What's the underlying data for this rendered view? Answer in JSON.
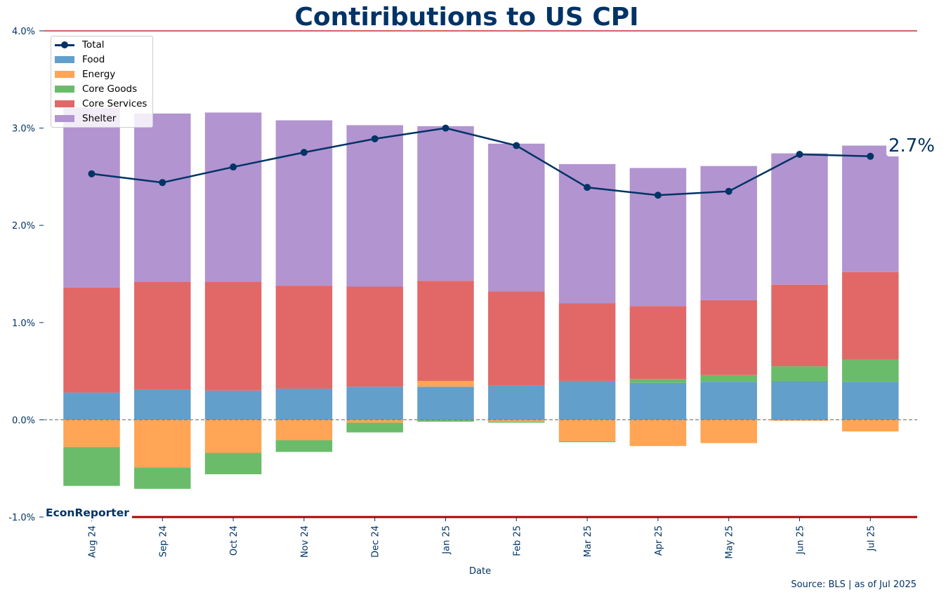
{
  "chart_data": {
    "type": "bar",
    "title": "Contiributions to US CPI",
    "xlabel": "Date",
    "ylabel": "",
    "ylim": [
      -1.0,
      4.0
    ],
    "yticks": [
      "-1.0%",
      "0.0%",
      "1.0%",
      "2.0%",
      "3.0%",
      "4.0%"
    ],
    "categories": [
      "Aug 24",
      "Sep 24",
      "Oct 24",
      "Nov 24",
      "Dec 24",
      "Jan 25",
      "Feb 25",
      "Mar 25",
      "Apr 25",
      "May 25",
      "Jun 25",
      "Jul 25"
    ],
    "stacked": true,
    "series": [
      {
        "name": "Food",
        "color": "#629fca",
        "values": [
          0.28,
          0.31,
          0.3,
          0.32,
          0.34,
          0.34,
          0.35,
          0.4,
          0.38,
          0.39,
          0.4,
          0.39
        ]
      },
      {
        "name": "Energy",
        "color": "#ffa555",
        "values": [
          -0.28,
          -0.49,
          -0.34,
          -0.21,
          -0.03,
          0.06,
          -0.02,
          -0.22,
          -0.27,
          -0.24,
          -0.01,
          -0.12
        ]
      },
      {
        "name": "Core Goods",
        "color": "#6abc6a",
        "values": [
          -0.4,
          -0.22,
          -0.22,
          -0.12,
          -0.1,
          -0.02,
          -0.01,
          -0.01,
          0.04,
          0.07,
          0.15,
          0.23
        ]
      },
      {
        "name": "Core Services",
        "color": "#e26868",
        "values": [
          1.08,
          1.11,
          1.12,
          1.06,
          1.03,
          1.03,
          0.97,
          0.8,
          0.75,
          0.77,
          0.84,
          0.9
        ]
      },
      {
        "name": "Shelter",
        "color": "#b294d0",
        "values": [
          1.85,
          1.73,
          1.74,
          1.7,
          1.66,
          1.59,
          1.52,
          1.43,
          1.42,
          1.38,
          1.35,
          1.3
        ]
      }
    ],
    "line": {
      "name": "Total",
      "color": "#003366",
      "values": [
        2.53,
        2.44,
        2.6,
        2.75,
        2.89,
        3.0,
        2.82,
        2.39,
        2.31,
        2.35,
        2.73,
        2.71
      ]
    },
    "last_value_label": "2.7%",
    "legend_position": "top-left",
    "grid": false,
    "zero_line": "dashed"
  },
  "brand": "EconReporter",
  "source": "Source: BLS | as of Jul 2025"
}
